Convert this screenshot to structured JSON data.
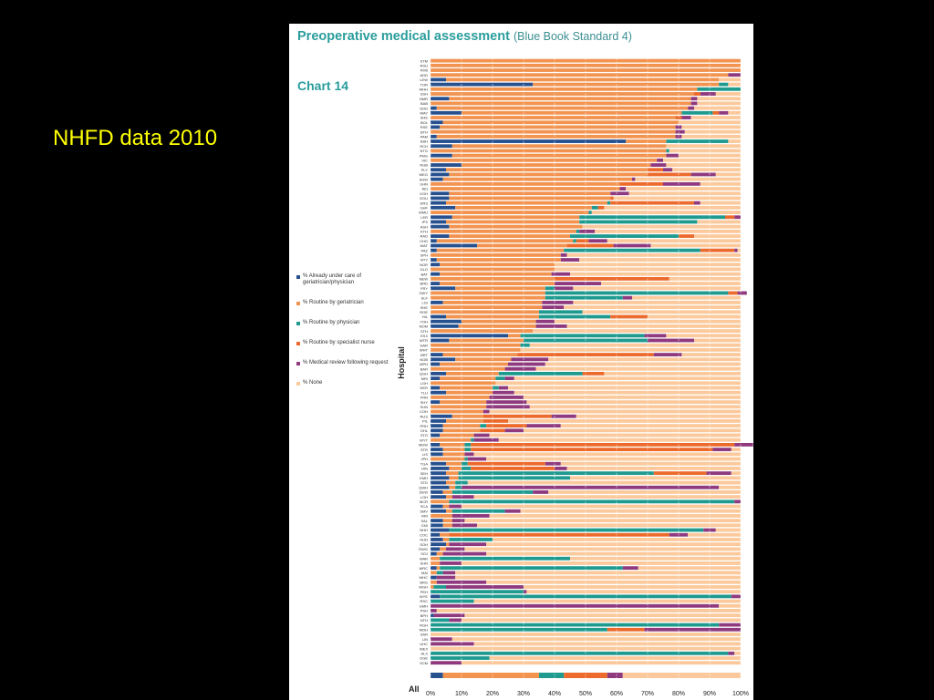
{
  "slide": {
    "caption": "NHFD data 2010"
  },
  "panel": {
    "title_main": "Preoperative medical assessment",
    "title_sub": "(Blue Book Standard 4)",
    "chart_number": "Chart 14"
  },
  "colors": {
    "background": "#000000",
    "caption": "#ffff00",
    "title": "#2a9d9c",
    "arrow": "#c8383a",
    "gridline": "#ffffff"
  },
  "chart_data": {
    "type": "bar",
    "orientation": "horizontal-stacked-percent",
    "title": "",
    "xlabel": "",
    "ylabel": "Hospital",
    "xlim": [
      0,
      100
    ],
    "x_ticks": [
      "0%",
      "10%",
      "20%",
      "30%",
      "40%",
      "50%",
      "60%",
      "70%",
      "80%",
      "90%",
      "100%"
    ],
    "grid": true,
    "legend_position": "left",
    "series": [
      {
        "name": "% Already under care of geriatrician/physician",
        "color": "#27508e"
      },
      {
        "name": "% Routine by geriatrician",
        "color": "#f2934f"
      },
      {
        "name": "% Routine by physician",
        "color": "#1f9a8f"
      },
      {
        "name": "% Routine by specialist nurse",
        "color": "#ec6a2b"
      },
      {
        "name": "% Medical review following request",
        "color": "#8f3a7e"
      },
      {
        "name": "% None",
        "color": "#fbc99b"
      }
    ],
    "categories": [
      "STM",
      "RSU",
      "RVB",
      "ADD",
      "LEW",
      "TOR",
      "WHH",
      "SSH",
      "NMR",
      "BAB",
      "DDD",
      "WAY",
      "SHE",
      "BOL",
      "RSE",
      "BTH",
      "PAM",
      "EBH",
      "RCH",
      "NTG",
      "PMG",
      "VIC",
      "NGB",
      "PLY",
      "WEG",
      "SHW",
      "UHN",
      "AEI",
      "KGH",
      "EGU",
      "DRS",
      "GHF",
      "WMU",
      "LER",
      "IPS",
      "ASH",
      "KTH",
      "RAD",
      "CHG",
      "WAT",
      "PAZ",
      "SPH",
      "NTY",
      "NOR",
      "GLO",
      "BAT",
      "NEW",
      "BRD",
      "FRY",
      "GWY",
      "SLF",
      "LGI",
      "SHE",
      "ROE",
      "HIL",
      "YOH",
      "NOM",
      "STH",
      "KSX",
      "WTR",
      "HAR",
      "WHT",
      "BRT",
      "NOB",
      "MPH",
      "BAR",
      "QGH",
      "MRI",
      "LGH",
      "DER",
      "TLU",
      "FRN",
      "SHY",
      "SUN",
      "COH",
      "RUS",
      "PIL",
      "PRH",
      "OHL",
      "STO",
      "WYT",
      "MDW",
      "STR",
      "LIS",
      "JPH",
      "TGA",
      "HIN",
      "SEH",
      "KMH",
      "STD",
      "QWH",
      "DEW",
      "LOH",
      "MCR",
      "SCA",
      "SMV",
      "RRI",
      "SAL",
      "CMI",
      "NHH",
      "COC",
      "HUD",
      "SOH",
      "RWG",
      "SOJ",
      "WAR",
      "SHN",
      "WRC",
      "MAI",
      "WHC",
      "BRG",
      "WGH",
      "PEH",
      "WYE",
      "RSC",
      "GMH",
      "PSH",
      "BPH",
      "NTH",
      "RGH",
      "WDH",
      "SAR",
      "LIN",
      "UHC",
      "WEX",
      "ALX",
      "DGE",
      "SCM",
      "WOI"
    ],
    "rows": [
      [
        0,
        100,
        0,
        0,
        0,
        0
      ],
      [
        0,
        100,
        0,
        0,
        0,
        0
      ],
      [
        0,
        100,
        0,
        0,
        0,
        0
      ],
      [
        0,
        96,
        0,
        0,
        4,
        0
      ],
      [
        5,
        88,
        0,
        0,
        0,
        7
      ],
      [
        33,
        60,
        3,
        0,
        0,
        4
      ],
      [
        0,
        86,
        14,
        0,
        0,
        0
      ],
      [
        0,
        85,
        0,
        2,
        5,
        8
      ],
      [
        6,
        78,
        0,
        0,
        2,
        14
      ],
      [
        0,
        84,
        0,
        0,
        2,
        14
      ],
      [
        2,
        81,
        0,
        0,
        2,
        15
      ],
      [
        10,
        71,
        10,
        2,
        3,
        4
      ],
      [
        0,
        79,
        0,
        2,
        3,
        16
      ],
      [
        4,
        76,
        0,
        0,
        0,
        20
      ],
      [
        3,
        76,
        0,
        0,
        2,
        19
      ],
      [
        0,
        79,
        0,
        0,
        3,
        18
      ],
      [
        2,
        77,
        0,
        0,
        2,
        19
      ],
      [
        63,
        13,
        20,
        0,
        0,
        4
      ],
      [
        7,
        69,
        0,
        0,
        0,
        24
      ],
      [
        0,
        76,
        1,
        0,
        0,
        23
      ],
      [
        7,
        69,
        0,
        0,
        4,
        20
      ],
      [
        0,
        73,
        0,
        0,
        2,
        25
      ],
      [
        10,
        61,
        0,
        0,
        5,
        24
      ],
      [
        5,
        65,
        0,
        5,
        3,
        22
      ],
      [
        6,
        64,
        0,
        14,
        8,
        8
      ],
      [
        4,
        61,
        0,
        0,
        1,
        34
      ],
      [
        0,
        61,
        0,
        14,
        12,
        13
      ],
      [
        0,
        61,
        0,
        0,
        2,
        37
      ],
      [
        6,
        52,
        0,
        0,
        6,
        36
      ],
      [
        6,
        52,
        0,
        1,
        0,
        41
      ],
      [
        5,
        52,
        1,
        27,
        2,
        13
      ],
      [
        8,
        44,
        2,
        2,
        0,
        44
      ],
      [
        0,
        51,
        1,
        0,
        0,
        48
      ],
      [
        7,
        41,
        47,
        3,
        2,
        0
      ],
      [
        5,
        43,
        38,
        0,
        0,
        14
      ],
      [
        6,
        43,
        0,
        0,
        0,
        51
      ],
      [
        0,
        47,
        1,
        0,
        5,
        47
      ],
      [
        6,
        39,
        35,
        5,
        0,
        15
      ],
      [
        2,
        44,
        1,
        4,
        6,
        43
      ],
      [
        15,
        29,
        0,
        15,
        12,
        29
      ],
      [
        2,
        41,
        44,
        11,
        1,
        1
      ],
      [
        0,
        42,
        0,
        0,
        2,
        56
      ],
      [
        2,
        40,
        0,
        0,
        6,
        52
      ],
      [
        3,
        37,
        0,
        0,
        0,
        60
      ],
      [
        0,
        40,
        0,
        0,
        0,
        60
      ],
      [
        3,
        36,
        0,
        0,
        6,
        55
      ],
      [
        0,
        40,
        0,
        37,
        0,
        23
      ],
      [
        3,
        37,
        0,
        0,
        15,
        45
      ],
      [
        8,
        29,
        3,
        0,
        6,
        54
      ],
      [
        0,
        37,
        59,
        3,
        3,
        0
      ],
      [
        0,
        37,
        25,
        0,
        3,
        35
      ],
      [
        4,
        32,
        0,
        0,
        10,
        54
      ],
      [
        0,
        36,
        0,
        0,
        7,
        57
      ],
      [
        0,
        35,
        14,
        0,
        0,
        51
      ],
      [
        5,
        30,
        23,
        12,
        0,
        30
      ],
      [
        10,
        24,
        0,
        0,
        6,
        60
      ],
      [
        9,
        25,
        0,
        0,
        10,
        56
      ],
      [
        0,
        33,
        0,
        0,
        0,
        67
      ],
      [
        25,
        4,
        40,
        0,
        7,
        24
      ],
      [
        6,
        24,
        40,
        0,
        15,
        15
      ],
      [
        0,
        29,
        3,
        0,
        0,
        68
      ],
      [
        0,
        29,
        0,
        0,
        0,
        71
      ],
      [
        4,
        24,
        0,
        44,
        9,
        19
      ],
      [
        8,
        18,
        0,
        0,
        12,
        62
      ],
      [
        3,
        22,
        0,
        0,
        12,
        63
      ],
      [
        0,
        24,
        0,
        0,
        10,
        66
      ],
      [
        5,
        17,
        27,
        7,
        0,
        44
      ],
      [
        3,
        18,
        3,
        0,
        3,
        73
      ],
      [
        0,
        21,
        0,
        0,
        0,
        79
      ],
      [
        3,
        17,
        2,
        0,
        3,
        75
      ],
      [
        5,
        15,
        0,
        0,
        7,
        73
      ],
      [
        0,
        19,
        0,
        0,
        11,
        70
      ],
      [
        3,
        15,
        0,
        0,
        13,
        69
      ],
      [
        0,
        18,
        0,
        0,
        14,
        68
      ],
      [
        0,
        17,
        0,
        0,
        2,
        81
      ],
      [
        7,
        10,
        0,
        22,
        8,
        53
      ],
      [
        5,
        12,
        0,
        8,
        0,
        75
      ],
      [
        4,
        12,
        2,
        13,
        11,
        58
      ],
      [
        4,
        12,
        0,
        8,
        6,
        70
      ],
      [
        3,
        11,
        0,
        0,
        5,
        81
      ],
      [
        0,
        13,
        1,
        0,
        8,
        78
      ],
      [
        3,
        8,
        2,
        85,
        6,
        0
      ],
      [
        4,
        7,
        2,
        78,
        6,
        3
      ],
      [
        4,
        7,
        0,
        0,
        3,
        86
      ],
      [
        0,
        11,
        1,
        0,
        6,
        82
      ],
      [
        5,
        5,
        2,
        25,
        5,
        58
      ],
      [
        6,
        4,
        3,
        27,
        4,
        56
      ],
      [
        5,
        4,
        63,
        17,
        8,
        3
      ],
      [
        6,
        3,
        36,
        0,
        0,
        55
      ],
      [
        5,
        3,
        4,
        0,
        0,
        88
      ],
      [
        6,
        2,
        2,
        0,
        83,
        7
      ],
      [
        4,
        3,
        26,
        0,
        5,
        62
      ],
      [
        5,
        2,
        0,
        0,
        7,
        86
      ],
      [
        0,
        6,
        92,
        0,
        2,
        0
      ],
      [
        4,
        2,
        0,
        0,
        4,
        90
      ],
      [
        5,
        2,
        17,
        0,
        5,
        71
      ],
      [
        0,
        7,
        0,
        0,
        12,
        81
      ],
      [
        4,
        3,
        0,
        0,
        4,
        89
      ],
      [
        4,
        3,
        0,
        0,
        8,
        85
      ],
      [
        6,
        0,
        82,
        0,
        4,
        8
      ],
      [
        3,
        3,
        0,
        71,
        6,
        17
      ],
      [
        4,
        2,
        14,
        0,
        0,
        80
      ],
      [
        5,
        1,
        0,
        0,
        12,
        82
      ],
      [
        3,
        2,
        0,
        0,
        6,
        89
      ],
      [
        2,
        2,
        0,
        0,
        14,
        82
      ],
      [
        0,
        3,
        42,
        0,
        0,
        55
      ],
      [
        0,
        3,
        0,
        0,
        7,
        90
      ],
      [
        2,
        1,
        59,
        0,
        5,
        33
      ],
      [
        0,
        2,
        2,
        0,
        4,
        92
      ],
      [
        2,
        0,
        0,
        0,
        6,
        92
      ],
      [
        0,
        2,
        0,
        0,
        16,
        82
      ],
      [
        0,
        1,
        4,
        0,
        25,
        70
      ],
      [
        0,
        0,
        30,
        0,
        1,
        69
      ],
      [
        3,
        0,
        94,
        0,
        3,
        0
      ],
      [
        0,
        0,
        14,
        0,
        0,
        86
      ],
      [
        0,
        0,
        0,
        0,
        93,
        7
      ],
      [
        0,
        0,
        0,
        0,
        2,
        98
      ],
      [
        1,
        0,
        0,
        0,
        10,
        89
      ],
      [
        0,
        0,
        6,
        0,
        4,
        90
      ],
      [
        0,
        0,
        93,
        0,
        7,
        0
      ],
      [
        0,
        0,
        57,
        12,
        31,
        0
      ],
      [
        0,
        0,
        0,
        0,
        0,
        100
      ],
      [
        0,
        0,
        0,
        0,
        7,
        93
      ],
      [
        0,
        0,
        0,
        0,
        14,
        86
      ],
      [
        0,
        0,
        0,
        0,
        0,
        100
      ],
      [
        0,
        0,
        96,
        0,
        2,
        2
      ],
      [
        0,
        0,
        19,
        0,
        0,
        81
      ],
      [
        0,
        0,
        0,
        0,
        10,
        90
      ]
    ],
    "all_row": {
      "label": "All",
      "values": [
        4,
        31,
        8,
        14,
        5,
        38
      ]
    }
  }
}
